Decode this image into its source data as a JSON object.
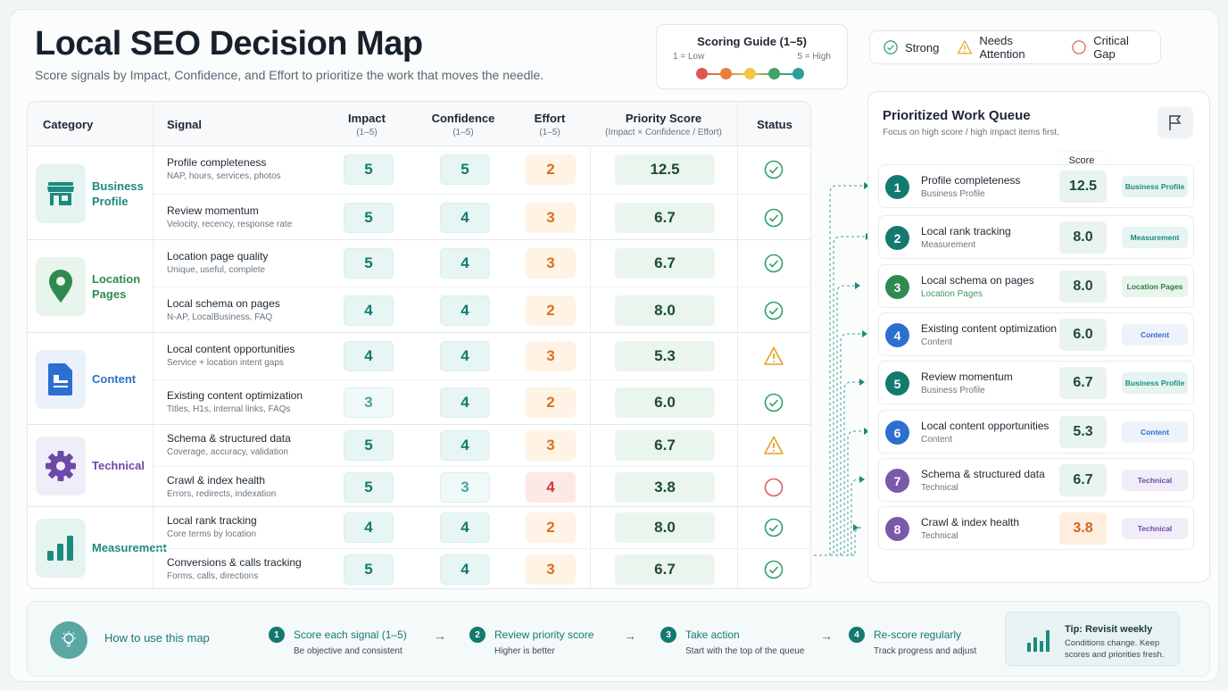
{
  "header": {
    "title": "Local SEO Decision Map",
    "subtitle": "Score signals by Impact, Confidence, and Effort to prioritize the work that moves the needle."
  },
  "scoring_guide": {
    "title": "Scoring Guide (1–5)",
    "low": "1 = Low",
    "high": "5 = High",
    "colors": [
      "#e0574d",
      "#e97f3f",
      "#f4c34a",
      "#3fa36b",
      "#2f9e96"
    ]
  },
  "legend": [
    {
      "icon": "check-circle-icon",
      "label": "Strong",
      "color": "#2f9e6a"
    },
    {
      "icon": "warning-triangle-icon",
      "label": "Needs Attention",
      "color": "#e6a023"
    },
    {
      "icon": "empty-circle-icon",
      "label": "Critical Gap",
      "color": "#e05a5a"
    }
  ],
  "table": {
    "headers": {
      "category": "Category",
      "signal": "Signal",
      "impact": "Impact",
      "impact_sub": "(1–5)",
      "confidence": "Confidence",
      "confidence_sub": "(1–5)",
      "effort": "Effort",
      "effort_sub": "(1–5)",
      "priority": "Priority Score",
      "priority_sub": "(Impact × Confidence / Effort)",
      "status": "Status"
    },
    "groups": [
      {
        "category": "Business Profile",
        "icon": "storefront-icon",
        "color": "#1c8a7e",
        "bg": "#e6f4f1",
        "rows": [
          {
            "signal": "Profile completeness",
            "detail": "NAP, hours, services, photos",
            "impact": 5,
            "confidence": 5,
            "effort": 2,
            "priority": "12.5",
            "status": "strong"
          },
          {
            "signal": "Review momentum",
            "detail": "Velocity, recency, response rate",
            "impact": 5,
            "confidence": 4,
            "effort": 3,
            "priority": "6.7",
            "status": "strong"
          }
        ]
      },
      {
        "category": "Location Pages",
        "icon": "map-pin-icon",
        "color": "#2f8a4f",
        "bg": "#e8f4ec",
        "rows": [
          {
            "signal": "Location page quality",
            "detail": "Unique, useful, complete",
            "impact": 5,
            "confidence": 4,
            "effort": 3,
            "priority": "6.7",
            "status": "strong"
          },
          {
            "signal": "Local schema on pages",
            "detail": "N-AP, LocalBusiness, FAQ",
            "impact": 4,
            "confidence": 4,
            "effort": 2,
            "priority": "8.0",
            "status": "strong"
          }
        ]
      },
      {
        "category": "Content",
        "icon": "document-icon",
        "color": "#2d6fd0",
        "bg": "#eaf1fb",
        "rows": [
          {
            "signal": "Local content opportunities",
            "detail": "Service + location intent gaps",
            "impact": 4,
            "confidence": 4,
            "effort": 3,
            "priority": "5.3",
            "status": "attention"
          },
          {
            "signal": "Existing content optimization",
            "detail": "Titles, H1s, internal links, FAQs",
            "impact": 3,
            "confidence": 4,
            "effort": 2,
            "priority": "6.0",
            "status": "strong"
          }
        ]
      },
      {
        "category": "Technical",
        "icon": "gear-icon",
        "color": "#6b4aa8",
        "bg": "#f1edf8",
        "rows": [
          {
            "signal": "Schema & structured data",
            "detail": "Coverage, accuracy, validation",
            "impact": 5,
            "confidence": 4,
            "effort": 3,
            "priority": "6.7",
            "status": "attention"
          },
          {
            "signal": "Crawl & index health",
            "detail": "Errors, redirects, indexation",
            "impact": 5,
            "confidence": 3,
            "effort": 4,
            "priority": "3.8",
            "status": "critical"
          }
        ]
      },
      {
        "category": "Measurement",
        "icon": "bar-chart-icon",
        "color": "#1c8a7e",
        "bg": "#e6f4f1",
        "rows": [
          {
            "signal": "Local rank tracking",
            "detail": "Core terms by location",
            "impact": 4,
            "confidence": 4,
            "effort": 2,
            "priority": "8.0",
            "status": "strong"
          },
          {
            "signal": "Conversions & calls tracking",
            "detail": "Forms, calls, directions",
            "impact": 5,
            "confidence": 4,
            "effort": 3,
            "priority": "6.7",
            "status": "strong"
          }
        ]
      }
    ]
  },
  "queue": {
    "title": "Prioritized Work Queue",
    "subtitle": "Focus on high score / high impact items first.",
    "score_label": "Score",
    "items": [
      {
        "rank": "1",
        "name": "Profile completeness",
        "category": "Business Profile",
        "score": "12.5",
        "tag": "Business Profile",
        "color": "#137a70",
        "tag_bg": "#e6f4f1",
        "tag_color": "#1c8a7e",
        "score_bg": "#e9f4ee"
      },
      {
        "rank": "2",
        "name": "Local rank tracking",
        "category": "Measurement",
        "score": "8.0",
        "tag": "Measurement",
        "color": "#137a70",
        "tag_bg": "#e6f4f4",
        "tag_color": "#1c8a7e",
        "score_bg": "#e9f4ee"
      },
      {
        "rank": "3",
        "name": "Local schema on pages",
        "category": "Location Pages",
        "score": "8.0",
        "tag": "Location Pages",
        "color": "#2f8a4f",
        "tag_bg": "#e8f4ec",
        "tag_color": "#2f7a4a",
        "score_bg": "#e9f4ee"
      },
      {
        "rank": "4",
        "name": "Existing content optimization",
        "category": "Content",
        "score": "6.0",
        "tag": "Content",
        "color": "#2d6fd0",
        "tag_bg": "#eef3fb",
        "tag_color": "#2d6fd0",
        "score_bg": "#e9f4ee"
      },
      {
        "rank": "5",
        "name": "Review momentum",
        "category": "Business Profile",
        "score": "6.7",
        "tag": "Business Profile",
        "color": "#137a70",
        "tag_bg": "#e6f4f1",
        "tag_color": "#1c8a7e",
        "score_bg": "#e9f4ee"
      },
      {
        "rank": "6",
        "name": "Local content opportunities",
        "category": "Content",
        "score": "5.3",
        "tag": "Content",
        "color": "#2d6fd0",
        "tag_bg": "#eef3fb",
        "tag_color": "#2d6fd0",
        "score_bg": "#e9f4ee"
      },
      {
        "rank": "7",
        "name": "Schema & structured data",
        "category": "Technical",
        "score": "6.7",
        "tag": "Technical",
        "color": "#7a5aa8",
        "tag_bg": "#f1edf8",
        "tag_color": "#6b4aa8",
        "score_bg": "#e9f4ee"
      },
      {
        "rank": "8",
        "name": "Crawl & index health",
        "category": "Technical",
        "score": "3.8",
        "tag": "Technical",
        "color": "#7a5aa8",
        "tag_bg": "#f1edf8",
        "tag_color": "#6b4aa8",
        "score_bg": "#fdeedd"
      }
    ]
  },
  "how_to": {
    "title": "How to use this map",
    "steps": [
      {
        "n": "1",
        "title": "Score each signal (1–5)",
        "desc": "Be objective and consistent"
      },
      {
        "n": "2",
        "title": "Review priority score",
        "desc": "Higher is better"
      },
      {
        "n": "3",
        "title": "Take action",
        "desc": "Start with the top of the queue"
      },
      {
        "n": "4",
        "title": "Re-score regularly",
        "desc": "Track progress and adjust"
      }
    ],
    "arrow": "→",
    "tip": {
      "title": "Tip: Revisit weekly",
      "desc": "Conditions change. Keep scores and priorities fresh."
    }
  }
}
